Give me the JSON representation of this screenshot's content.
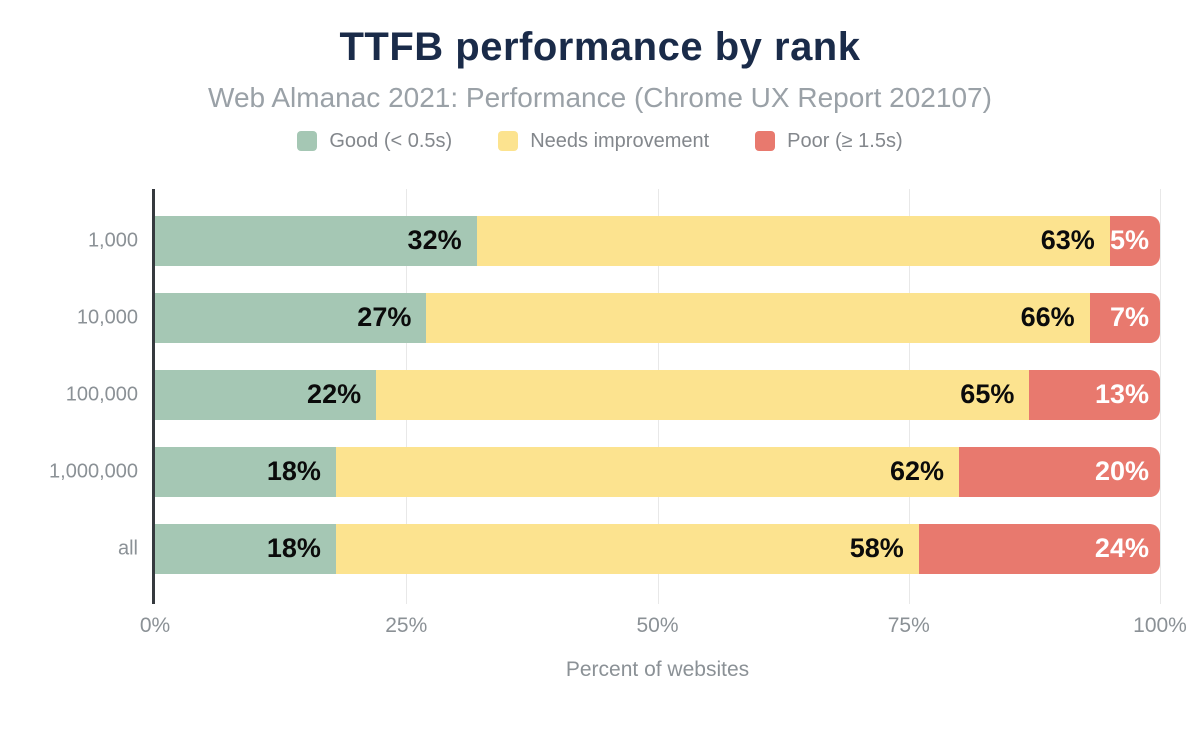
{
  "chart_data": {
    "type": "bar",
    "orientation": "horizontal",
    "stacked": true,
    "title": "TTFB performance by rank",
    "subtitle": "Web Almanac 2021: Performance (Chrome UX Report 202107)",
    "categories": [
      "1,000",
      "10,000",
      "100,000",
      "1,000,000",
      "all"
    ],
    "series": [
      {
        "name": "Good (< 0.5s)",
        "color": "#a5c7b4",
        "label_color": "#0b0b0b",
        "values": [
          32,
          27,
          22,
          18,
          18
        ]
      },
      {
        "name": "Needs improvement",
        "color": "#fce38f",
        "label_color": "#0b0b0b",
        "values": [
          63,
          66,
          65,
          62,
          58
        ]
      },
      {
        "name": "Poor (≥ 1.5s)",
        "color": "#e8796e",
        "label_color": "#ffffff",
        "values": [
          5,
          7,
          13,
          20,
          24
        ]
      }
    ],
    "value_suffix": "%",
    "xlabel": "Percent of websites",
    "ylabel": "",
    "x_ticks": [
      {
        "label": "0%",
        "value": 0
      },
      {
        "label": "25%",
        "value": 25
      },
      {
        "label": "50%",
        "value": 50
      },
      {
        "label": "75%",
        "value": 75
      },
      {
        "label": "100%",
        "value": 100
      }
    ],
    "xlim": [
      0,
      100
    ],
    "grid": "vertical",
    "legend_position": "top"
  },
  "colors": {
    "title": "#1a2b49",
    "subtitle": "#9aa1a7",
    "axis_text": "#8b9196",
    "legend_text": "#83878c",
    "axis_line": "#35393e",
    "gridline": "#e8e8e8",
    "background": "#ffffff"
  }
}
